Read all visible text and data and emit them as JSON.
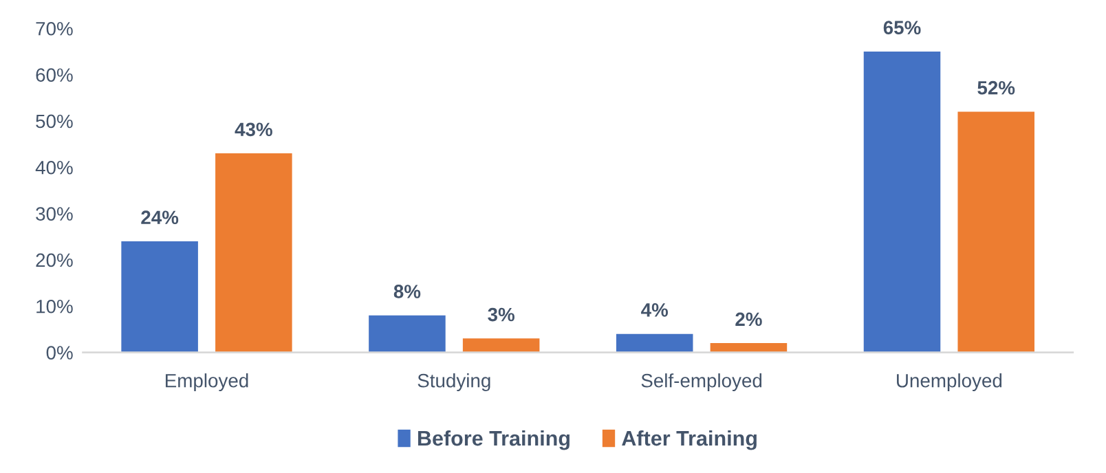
{
  "chart_data": {
    "type": "bar",
    "categories": [
      "Employed",
      "Studying",
      "Self-employed",
      "Unemployed"
    ],
    "series": [
      {
        "name": "Before Training",
        "color": "#4472c4",
        "values": [
          24,
          8,
          4,
          65
        ],
        "value_labels": [
          "24%",
          "8%",
          "4%",
          "65%"
        ]
      },
      {
        "name": "After Training",
        "color": "#ed7d31",
        "values": [
          43,
          3,
          2,
          52
        ],
        "value_labels": [
          "43%",
          "3%",
          "2%",
          "52%"
        ]
      }
    ],
    "ylim": [
      0,
      70
    ],
    "yticks": [
      {
        "value": 0,
        "label": "0%"
      },
      {
        "value": 10,
        "label": "10%"
      },
      {
        "value": 20,
        "label": "20%"
      },
      {
        "value": 30,
        "label": "30%"
      },
      {
        "value": 40,
        "label": "40%"
      },
      {
        "value": 50,
        "label": "50%"
      },
      {
        "value": 60,
        "label": "60%"
      },
      {
        "value": 70,
        "label": "70%"
      }
    ],
    "grid": false,
    "legend": "bottom"
  }
}
